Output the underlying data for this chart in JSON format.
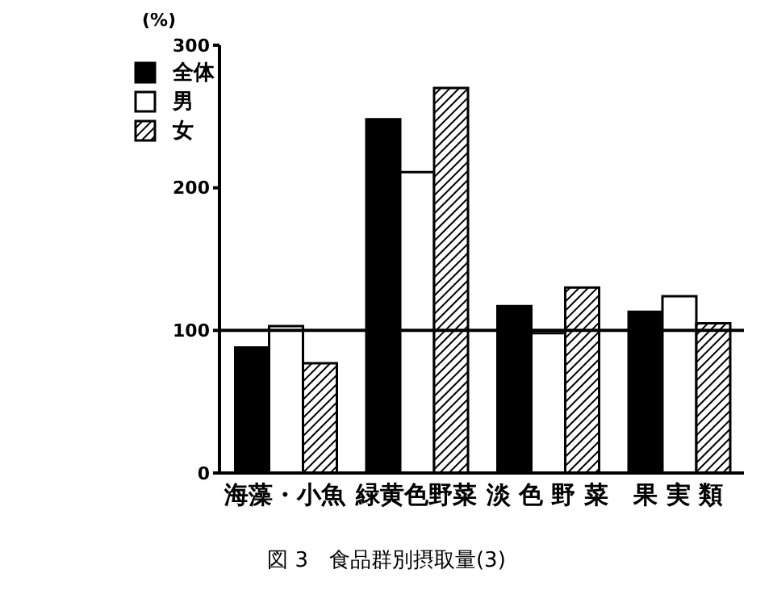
{
  "chart_data": {
    "type": "bar",
    "title": "図 3　食品群別摂取量(3)",
    "ylabel": "(%)",
    "categories": [
      "海藻・小魚",
      "緑黄色野菜",
      "淡 色 野 菜",
      "果 実 類"
    ],
    "series": [
      {
        "name": "全体",
        "color": "#000000",
        "values": [
          88,
          248,
          117,
          113
        ]
      },
      {
        "name": "男",
        "color": "#ffffff",
        "values": [
          103,
          211,
          98,
          124
        ]
      },
      {
        "name": "女",
        "color": "#000000",
        "values": [
          77,
          270,
          130,
          105
        ]
      }
    ],
    "ylim": [
      0,
      300
    ],
    "yticks": [
      0,
      100,
      200,
      300
    ],
    "ref_lines": [
      {
        "axis": "y",
        "value": 100,
        "color": "#000000"
      }
    ],
    "grid": false,
    "legend": "top left"
  }
}
